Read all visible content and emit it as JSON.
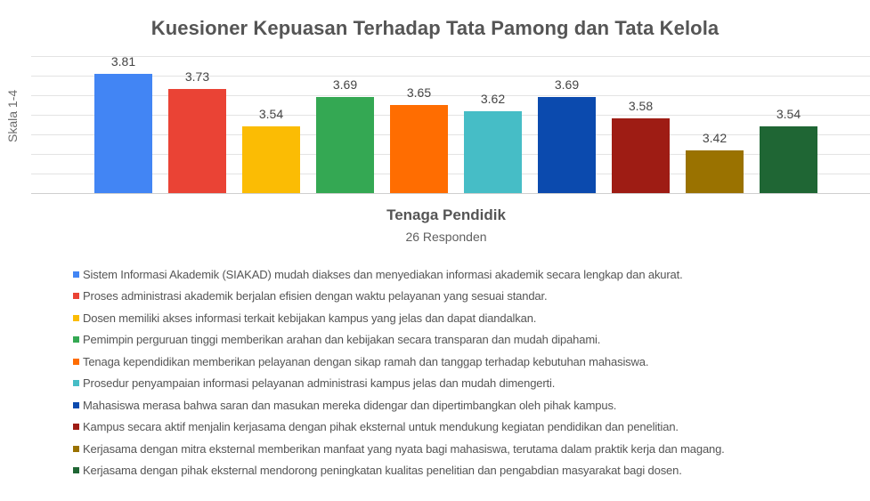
{
  "chart_data": {
    "type": "bar",
    "title": "Kuesioner Kepuasan Terhadap Tata Pamong dan Tata Kelola",
    "xlabel": "Tenaga Pendidik",
    "xsublabel": "26 Responden",
    "ylabel": "Skala 1-4",
    "ylim": [
      3.2,
      3.9
    ],
    "grid": true,
    "legend_position": "bottom",
    "categories": [
      "Sistem Informasi Akademik (SIAKAD) mudah diakses dan menyediakan informasi akademik secara lengkap dan akurat.",
      "Proses administrasi akademik berjalan efisien dengan waktu pelayanan yang sesuai standar.",
      "Dosen memiliki akses informasi terkait kebijakan kampus yang jelas dan dapat diandalkan.",
      "Pemimpin perguruan tinggi memberikan arahan dan kebijakan secara transparan dan mudah dipahami.",
      "Tenaga kependidikan memberikan pelayanan dengan sikap ramah dan tanggap terhadap kebutuhan mahasiswa.",
      "Prosedur penyampaian informasi pelayanan administrasi kampus jelas dan mudah dimengerti.",
      "Mahasiswa merasa bahwa saran dan masukan mereka didengar dan dipertimbangkan oleh pihak kampus.",
      "Kampus secara aktif menjalin kerjasama dengan pihak eksternal untuk mendukung kegiatan pendidikan dan penelitian.",
      "Kerjasama dengan mitra eksternal memberikan manfaat yang nyata bagi mahasiswa, terutama dalam praktik kerja dan magang.",
      "Kerjasama dengan pihak eksternal mendorong peningkatan kualitas penelitian dan pengabdian masyarakat bagi dosen."
    ],
    "values": [
      3.81,
      3.73,
      3.54,
      3.69,
      3.65,
      3.62,
      3.69,
      3.58,
      3.42,
      3.54
    ],
    "value_labels": [
      "3.81",
      "3.73",
      "3.54",
      "3.69",
      "3.65",
      "3.62",
      "3.69",
      "3.58",
      "3.42",
      "3.54"
    ],
    "colors": [
      "#4285f4",
      "#ea4335",
      "#fbbc04",
      "#34a853",
      "#ff6d01",
      "#46bdc6",
      "#0b4aae",
      "#9e1c14",
      "#9a7200",
      "#1f6634"
    ]
  }
}
